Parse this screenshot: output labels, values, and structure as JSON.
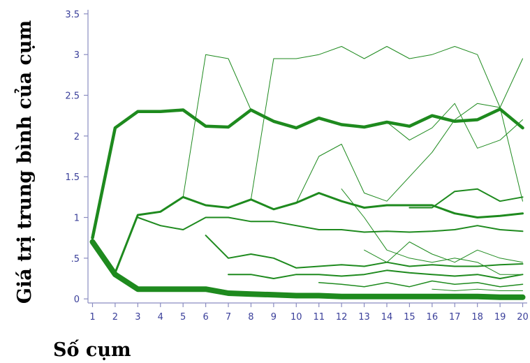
{
  "chart_data": {
    "type": "line",
    "xlabel": "Số cụm",
    "ylabel": "Giá trị trung bình của cụm",
    "x": [
      1,
      2,
      3,
      4,
      5,
      6,
      7,
      8,
      9,
      10,
      11,
      12,
      13,
      14,
      15,
      16,
      17,
      18,
      19,
      20
    ],
    "x_tick_labels": [
      "1",
      "2",
      "3",
      "4",
      "5",
      "6",
      "7",
      "8",
      "9",
      "10",
      "11",
      "12",
      "13",
      "14",
      "15",
      "16",
      "17",
      "18",
      "19",
      "20"
    ],
    "y_ticks": [
      0,
      0.5,
      1,
      1.5,
      2,
      2.5,
      3,
      3.5
    ],
    "y_tick_labels": [
      "0",
      ".5",
      "1",
      "1.5",
      "2",
      "2.5",
      "3",
      "3.5"
    ],
    "ylim": [
      -0.05,
      3.55
    ],
    "xlim": [
      0.8,
      20.2
    ],
    "grid": false,
    "line_color": "#1e8a1e",
    "axis_color": "#8a8cc0",
    "paths": [
      {
        "points": [
          [
            1,
            0.7
          ],
          [
            2,
            0.3
          ],
          [
            3,
            0.12
          ],
          [
            4,
            0.12
          ],
          [
            5,
            0.12
          ],
          [
            6,
            0.12
          ],
          [
            7,
            0.07
          ],
          [
            8,
            0.06
          ],
          [
            9,
            0.05
          ],
          [
            10,
            0.04
          ],
          [
            11,
            0.04
          ],
          [
            12,
            0.03
          ],
          [
            13,
            0.03
          ],
          [
            14,
            0.03
          ],
          [
            15,
            0.03
          ],
          [
            16,
            0.03
          ],
          [
            17,
            0.03
          ],
          [
            18,
            0.03
          ],
          [
            19,
            0.02
          ],
          [
            20,
            0.02
          ]
        ],
        "weight": 8
      },
      {
        "points": [
          [
            1,
            0.75
          ],
          [
            2,
            2.1
          ],
          [
            3,
            2.3
          ],
          [
            4,
            2.3
          ],
          [
            5,
            2.32
          ],
          [
            6,
            2.12
          ],
          [
            7,
            2.11
          ],
          [
            8,
            2.32
          ],
          [
            9,
            2.18
          ],
          [
            10,
            2.1
          ],
          [
            11,
            2.22
          ],
          [
            12,
            2.14
          ],
          [
            13,
            2.11
          ],
          [
            14,
            2.17
          ],
          [
            15,
            2.12
          ],
          [
            16,
            2.25
          ],
          [
            17,
            2.18
          ],
          [
            18,
            2.2
          ],
          [
            19,
            2.33
          ],
          [
            20,
            2.1
          ]
        ],
        "weight": 4.5
      },
      {
        "points": [
          [
            2,
            0.32
          ],
          [
            3,
            1.03
          ],
          [
            4,
            1.07
          ],
          [
            5,
            1.25
          ],
          [
            6,
            1.15
          ],
          [
            7,
            1.12
          ],
          [
            8,
            1.22
          ],
          [
            9,
            1.1
          ],
          [
            10,
            1.18
          ],
          [
            11,
            1.3
          ],
          [
            12,
            1.2
          ],
          [
            13,
            1.12
          ],
          [
            14,
            1.15
          ],
          [
            15,
            1.15
          ],
          [
            16,
            1.15
          ],
          [
            17,
            1.05
          ],
          [
            18,
            1.0
          ],
          [
            19,
            1.02
          ],
          [
            20,
            1.05
          ]
        ],
        "weight": 3
      },
      {
        "points": [
          [
            3,
            1.0
          ],
          [
            4,
            0.9
          ],
          [
            5,
            0.85
          ],
          [
            6,
            1.0
          ],
          [
            7,
            1.0
          ],
          [
            8,
            0.95
          ],
          [
            9,
            0.95
          ],
          [
            10,
            0.9
          ],
          [
            11,
            0.85
          ],
          [
            12,
            0.85
          ],
          [
            13,
            0.82
          ],
          [
            14,
            0.83
          ],
          [
            15,
            0.82
          ],
          [
            16,
            0.83
          ],
          [
            17,
            0.85
          ],
          [
            18,
            0.9
          ],
          [
            19,
            0.85
          ],
          [
            20,
            0.83
          ]
        ],
        "weight": 2
      },
      {
        "points": [
          [
            5,
            1.25
          ],
          [
            6,
            3.0
          ],
          [
            7,
            2.95
          ],
          [
            8,
            2.32
          ]
        ],
        "weight": 1
      },
      {
        "points": [
          [
            8,
            1.22
          ],
          [
            9,
            2.95
          ],
          [
            10,
            2.95
          ],
          [
            11,
            3.0
          ],
          [
            12,
            3.1
          ],
          [
            13,
            2.95
          ],
          [
            14,
            3.1
          ],
          [
            15,
            2.95
          ],
          [
            16,
            3.0
          ],
          [
            17,
            3.1
          ],
          [
            18,
            3.0
          ],
          [
            19,
            2.35
          ],
          [
            20,
            2.95
          ]
        ],
        "weight": 1
      },
      {
        "points": [
          [
            6,
            0.78
          ],
          [
            7,
            0.5
          ],
          [
            8,
            0.55
          ],
          [
            9,
            0.5
          ],
          [
            10,
            0.38
          ],
          [
            11,
            0.4
          ],
          [
            12,
            0.42
          ],
          [
            13,
            0.4
          ],
          [
            14,
            0.45
          ],
          [
            15,
            0.4
          ],
          [
            16,
            0.42
          ],
          [
            17,
            0.4
          ],
          [
            18,
            0.4
          ],
          [
            19,
            0.42
          ],
          [
            20,
            0.43
          ]
        ],
        "weight": 2
      },
      {
        "points": [
          [
            7,
            0.3
          ],
          [
            8,
            0.3
          ],
          [
            9,
            0.25
          ],
          [
            10,
            0.3
          ],
          [
            11,
            0.3
          ],
          [
            12,
            0.28
          ],
          [
            13,
            0.3
          ],
          [
            14,
            0.35
          ],
          [
            15,
            0.32
          ],
          [
            16,
            0.3
          ],
          [
            17,
            0.28
          ],
          [
            18,
            0.3
          ],
          [
            19,
            0.25
          ],
          [
            20,
            0.3
          ]
        ],
        "weight": 2
      },
      {
        "points": [
          [
            10,
            1.18
          ],
          [
            11,
            1.75
          ],
          [
            12,
            1.9
          ],
          [
            13,
            1.3
          ],
          [
            14,
            1.2
          ],
          [
            15,
            1.5
          ],
          [
            16,
            1.8
          ],
          [
            17,
            2.2
          ],
          [
            18,
            2.4
          ],
          [
            19,
            2.35
          ],
          [
            20,
            1.2
          ]
        ],
        "weight": 1
      },
      {
        "points": [
          [
            12,
            1.35
          ],
          [
            13,
            1.0
          ],
          [
            14,
            0.6
          ],
          [
            15,
            0.5
          ],
          [
            16,
            0.45
          ],
          [
            17,
            0.5
          ],
          [
            18,
            0.45
          ],
          [
            19,
            0.3
          ],
          [
            20,
            0.3
          ]
        ],
        "weight": 1
      },
      {
        "points": [
          [
            14,
            2.17
          ],
          [
            15,
            1.95
          ],
          [
            16,
            2.1
          ],
          [
            17,
            2.4
          ],
          [
            18,
            1.85
          ],
          [
            19,
            1.95
          ],
          [
            20,
            2.2
          ]
        ],
        "weight": 1
      },
      {
        "points": [
          [
            15,
            1.12
          ],
          [
            16,
            1.12
          ],
          [
            17,
            1.32
          ],
          [
            18,
            1.35
          ],
          [
            19,
            1.2
          ],
          [
            20,
            1.25
          ]
        ],
        "weight": 2
      },
      {
        "points": [
          [
            11,
            0.2
          ],
          [
            12,
            0.18
          ],
          [
            13,
            0.15
          ],
          [
            14,
            0.2
          ],
          [
            15,
            0.15
          ],
          [
            16,
            0.22
          ],
          [
            17,
            0.18
          ],
          [
            18,
            0.2
          ],
          [
            19,
            0.15
          ],
          [
            20,
            0.18
          ]
        ],
        "weight": 1.5
      },
      {
        "points": [
          [
            13,
            0.6
          ],
          [
            14,
            0.45
          ],
          [
            15,
            0.7
          ],
          [
            16,
            0.55
          ],
          [
            17,
            0.45
          ],
          [
            18,
            0.6
          ],
          [
            19,
            0.5
          ],
          [
            20,
            0.45
          ]
        ],
        "weight": 1
      },
      {
        "points": [
          [
            16,
            0.12
          ],
          [
            17,
            0.1
          ],
          [
            18,
            0.12
          ],
          [
            19,
            0.1
          ],
          [
            20,
            0.1
          ]
        ],
        "weight": 1
      }
    ]
  }
}
